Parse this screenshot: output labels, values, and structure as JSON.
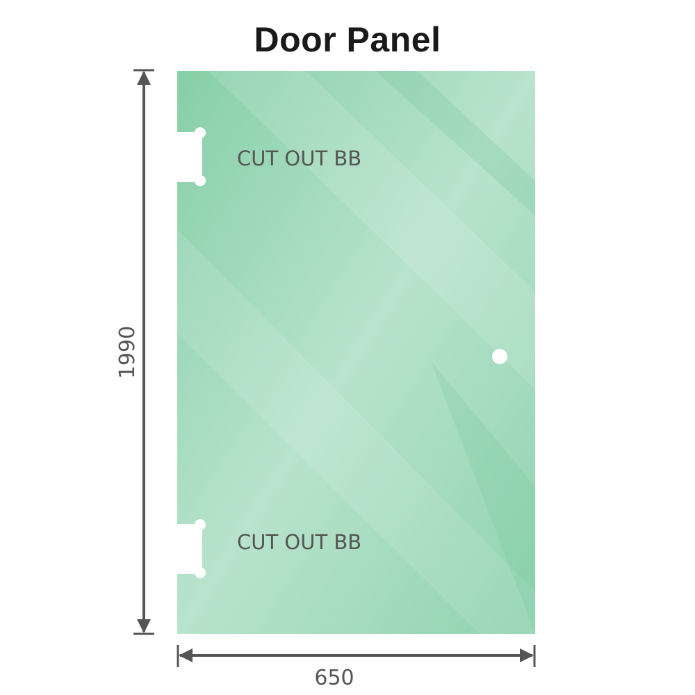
{
  "title": "Door Panel",
  "panel": {
    "glass_color": "#8fd1ae",
    "cutouts": [
      {
        "label": "CUT OUT BB"
      },
      {
        "label": "CUT OUT BB"
      }
    ],
    "handle_hole": true
  },
  "dimensions": {
    "height": "1990",
    "width": "650",
    "line_color": "#555555"
  }
}
